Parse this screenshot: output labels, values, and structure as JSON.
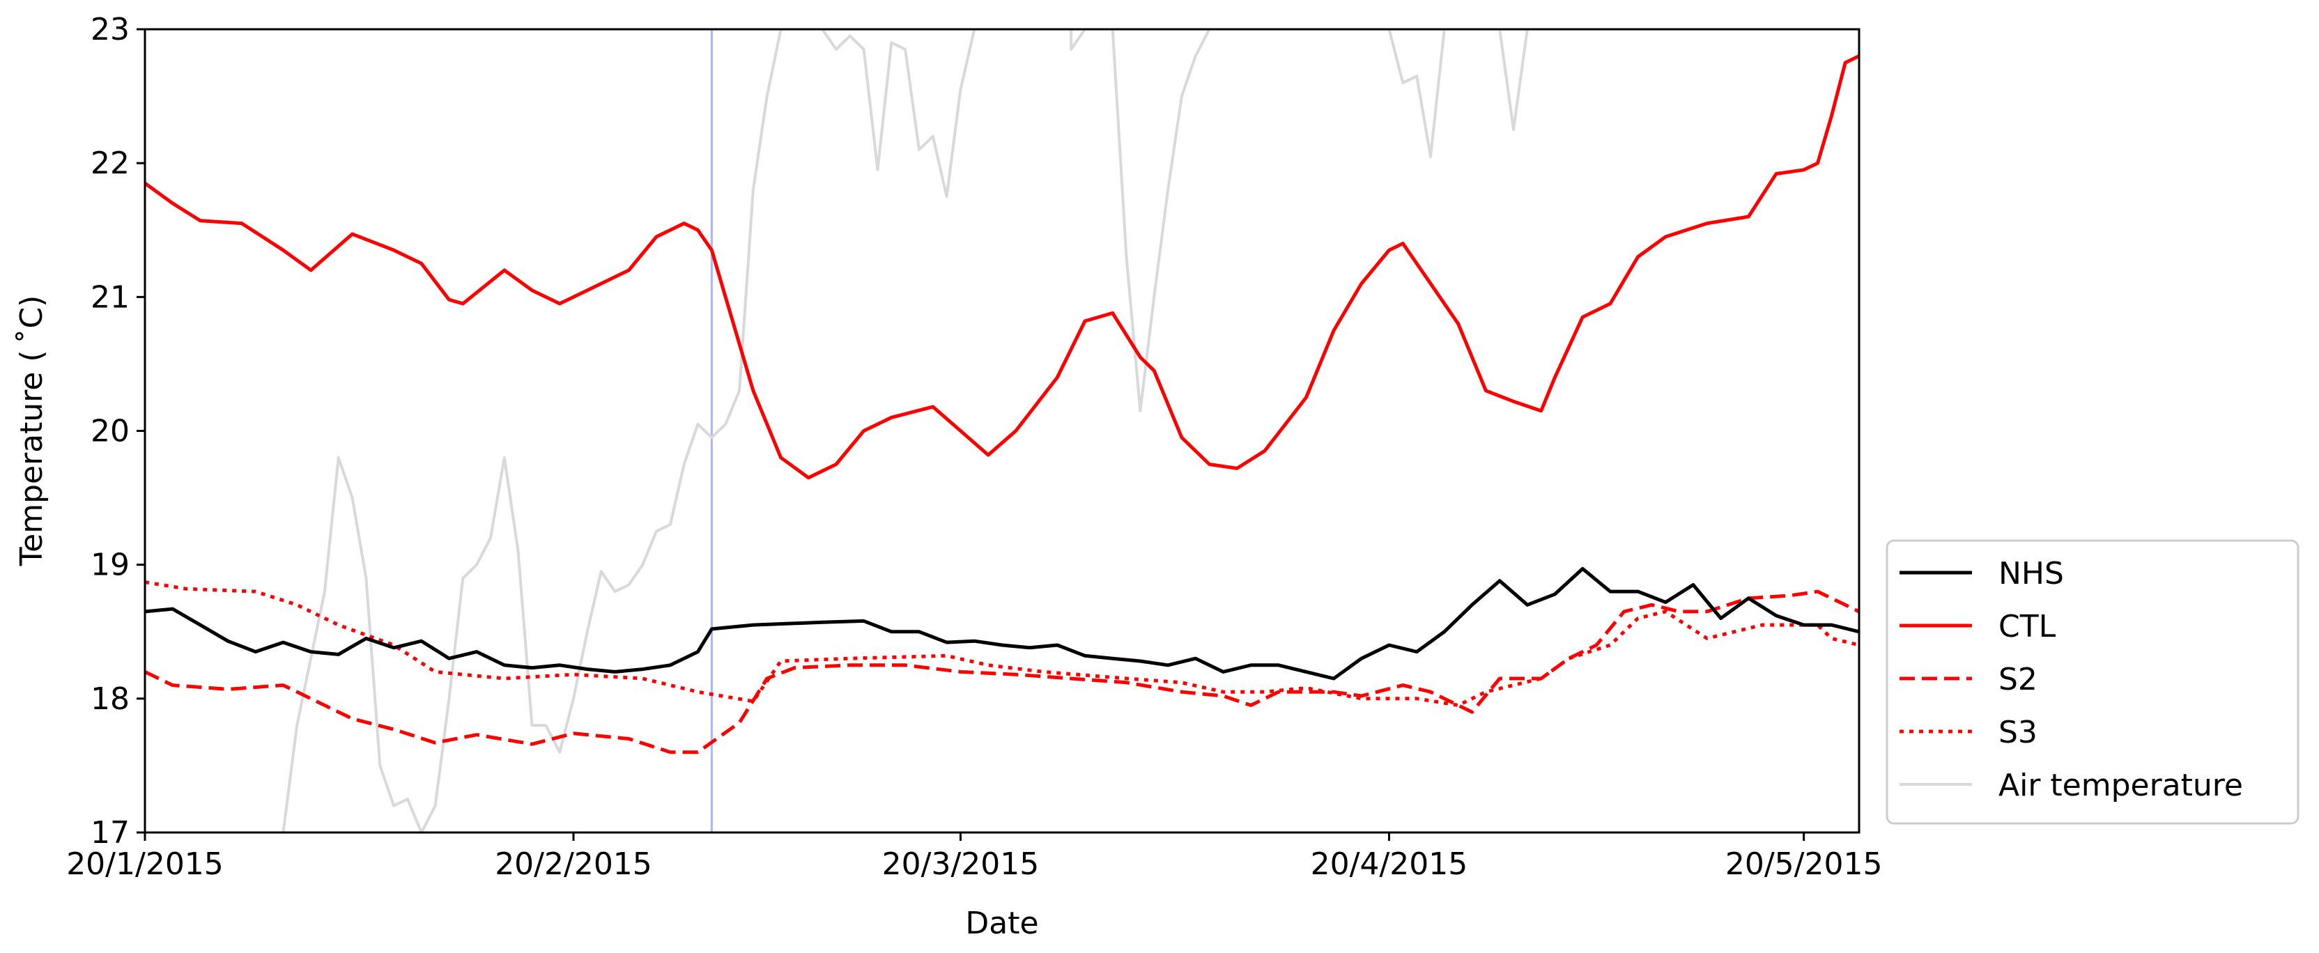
{
  "chart_data": {
    "type": "line",
    "title": "",
    "xlabel": "Date",
    "ylabel": "Temperature ( ˚C)",
    "ylim": [
      17,
      23
    ],
    "xlim": [
      "2015-01-20",
      "2015-05-24"
    ],
    "x_ticks": [
      {
        "date": "2015-01-20",
        "label": "20/1/2015"
      },
      {
        "date": "2015-02-20",
        "label": "20/2/2015"
      },
      {
        "date": "2015-03-20",
        "label": "20/3/2015"
      },
      {
        "date": "2015-04-20",
        "label": "20/4/2015"
      },
      {
        "date": "2015-05-20",
        "label": "20/5/2015"
      }
    ],
    "y_ticks": [
      17,
      18,
      19,
      20,
      21,
      22,
      23
    ],
    "grid": false,
    "legend_position": "right-bottom, outside plot",
    "vertical_marker": {
      "date": "2015-03-02",
      "color": "#aab4ff"
    },
    "series": [
      {
        "name": "NHS",
        "color": "#000000",
        "dash": "solid",
        "points": [
          [
            "2015-01-20",
            18.65
          ],
          [
            "2015-01-22",
            18.67
          ],
          [
            "2015-01-24",
            18.55
          ],
          [
            "2015-01-26",
            18.43
          ],
          [
            "2015-01-28",
            18.35
          ],
          [
            "2015-01-30",
            18.42
          ],
          [
            "2015-02-01",
            18.35
          ],
          [
            "2015-02-03",
            18.33
          ],
          [
            "2015-02-05",
            18.45
          ],
          [
            "2015-02-07",
            18.38
          ],
          [
            "2015-02-09",
            18.43
          ],
          [
            "2015-02-11",
            18.3
          ],
          [
            "2015-02-13",
            18.35
          ],
          [
            "2015-02-15",
            18.25
          ],
          [
            "2015-02-17",
            18.23
          ],
          [
            "2015-02-19",
            18.25
          ],
          [
            "2015-02-21",
            18.22
          ],
          [
            "2015-02-23",
            18.2
          ],
          [
            "2015-02-25",
            18.22
          ],
          [
            "2015-02-27",
            18.25
          ],
          [
            "2015-03-01",
            18.35
          ],
          [
            "2015-03-02",
            18.52
          ],
          [
            "2015-03-05",
            18.55
          ],
          [
            "2015-03-10",
            18.57
          ],
          [
            "2015-03-13",
            18.58
          ],
          [
            "2015-03-15",
            18.5
          ],
          [
            "2015-03-17",
            18.5
          ],
          [
            "2015-03-19",
            18.42
          ],
          [
            "2015-03-21",
            18.43
          ],
          [
            "2015-03-23",
            18.4
          ],
          [
            "2015-03-25",
            18.38
          ],
          [
            "2015-03-27",
            18.4
          ],
          [
            "2015-03-29",
            18.32
          ],
          [
            "2015-03-31",
            18.3
          ],
          [
            "2015-04-02",
            18.28
          ],
          [
            "2015-04-04",
            18.25
          ],
          [
            "2015-04-06",
            18.3
          ],
          [
            "2015-04-08",
            18.2
          ],
          [
            "2015-04-10",
            18.25
          ],
          [
            "2015-04-12",
            18.25
          ],
          [
            "2015-04-14",
            18.2
          ],
          [
            "2015-04-16",
            18.15
          ],
          [
            "2015-04-18",
            18.3
          ],
          [
            "2015-04-20",
            18.4
          ],
          [
            "2015-04-22",
            18.35
          ],
          [
            "2015-04-24",
            18.5
          ],
          [
            "2015-04-26",
            18.7
          ],
          [
            "2015-04-28",
            18.88
          ],
          [
            "2015-04-30",
            18.7
          ],
          [
            "2015-05-02",
            18.78
          ],
          [
            "2015-05-04",
            18.97
          ],
          [
            "2015-05-06",
            18.8
          ],
          [
            "2015-05-08",
            18.8
          ],
          [
            "2015-05-10",
            18.72
          ],
          [
            "2015-05-12",
            18.85
          ],
          [
            "2015-05-14",
            18.6
          ],
          [
            "2015-05-16",
            18.75
          ],
          [
            "2015-05-18",
            18.62
          ],
          [
            "2015-05-20",
            18.55
          ],
          [
            "2015-05-22",
            18.55
          ],
          [
            "2015-05-24",
            18.5
          ]
        ]
      },
      {
        "name": "CTL",
        "color": "#ff0000",
        "dash": "solid",
        "points": [
          [
            "2015-01-20",
            21.85
          ],
          [
            "2015-01-22",
            21.7
          ],
          [
            "2015-01-24",
            21.57
          ],
          [
            "2015-01-27",
            21.55
          ],
          [
            "2015-01-30",
            21.35
          ],
          [
            "2015-02-01",
            21.2
          ],
          [
            "2015-02-04",
            21.47
          ],
          [
            "2015-02-07",
            21.35
          ],
          [
            "2015-02-09",
            21.25
          ],
          [
            "2015-02-11",
            20.98
          ],
          [
            "2015-02-12",
            20.95
          ],
          [
            "2015-02-15",
            21.2
          ],
          [
            "2015-02-17",
            21.05
          ],
          [
            "2015-02-19",
            20.95
          ],
          [
            "2015-02-21",
            21.05
          ],
          [
            "2015-02-24",
            21.2
          ],
          [
            "2015-02-26",
            21.45
          ],
          [
            "2015-02-28",
            21.55
          ],
          [
            "2015-03-01",
            21.5
          ],
          [
            "2015-03-02",
            21.35
          ],
          [
            "2015-03-03",
            21.0
          ],
          [
            "2015-03-05",
            20.3
          ],
          [
            "2015-03-07",
            19.8
          ],
          [
            "2015-03-09",
            19.65
          ],
          [
            "2015-03-11",
            19.75
          ],
          [
            "2015-03-13",
            20.0
          ],
          [
            "2015-03-15",
            20.1
          ],
          [
            "2015-03-18",
            20.18
          ],
          [
            "2015-03-20",
            20.0
          ],
          [
            "2015-03-22",
            19.82
          ],
          [
            "2015-03-24",
            20.0
          ],
          [
            "2015-03-27",
            20.4
          ],
          [
            "2015-03-29",
            20.82
          ],
          [
            "2015-03-31",
            20.88
          ],
          [
            "2015-04-02",
            20.55
          ],
          [
            "2015-04-03",
            20.45
          ],
          [
            "2015-04-05",
            19.95
          ],
          [
            "2015-04-07",
            19.75
          ],
          [
            "2015-04-09",
            19.72
          ],
          [
            "2015-04-11",
            19.85
          ],
          [
            "2015-04-14",
            20.25
          ],
          [
            "2015-04-16",
            20.75
          ],
          [
            "2015-04-18",
            21.1
          ],
          [
            "2015-04-20",
            21.35
          ],
          [
            "2015-04-21",
            21.4
          ],
          [
            "2015-04-23",
            21.1
          ],
          [
            "2015-04-25",
            20.8
          ],
          [
            "2015-04-27",
            20.3
          ],
          [
            "2015-04-29",
            20.22
          ],
          [
            "2015-05-01",
            20.15
          ],
          [
            "2015-05-02",
            20.4
          ],
          [
            "2015-05-04",
            20.85
          ],
          [
            "2015-05-06",
            20.95
          ],
          [
            "2015-05-08",
            21.3
          ],
          [
            "2015-05-10",
            21.45
          ],
          [
            "2015-05-13",
            21.55
          ],
          [
            "2015-05-16",
            21.6
          ],
          [
            "2015-05-18",
            21.92
          ],
          [
            "2015-05-20",
            21.95
          ],
          [
            "2015-05-21",
            22.0
          ],
          [
            "2015-05-22",
            22.35
          ],
          [
            "2015-05-23",
            22.75
          ],
          [
            "2015-05-24",
            22.8
          ]
        ]
      },
      {
        "name": "S2",
        "color": "#ff0000",
        "dash": "dashed",
        "points": [
          [
            "2015-01-20",
            18.2
          ],
          [
            "2015-01-22",
            18.1
          ],
          [
            "2015-01-26",
            18.07
          ],
          [
            "2015-01-30",
            18.1
          ],
          [
            "2015-02-01",
            18.0
          ],
          [
            "2015-02-04",
            17.85
          ],
          [
            "2015-02-07",
            17.77
          ],
          [
            "2015-02-10",
            17.67
          ],
          [
            "2015-02-13",
            17.73
          ],
          [
            "2015-02-17",
            17.66
          ],
          [
            "2015-02-20",
            17.74
          ],
          [
            "2015-02-24",
            17.7
          ],
          [
            "2015-02-27",
            17.6
          ],
          [
            "2015-03-01",
            17.6
          ],
          [
            "2015-03-04",
            17.82
          ],
          [
            "2015-03-06",
            18.15
          ],
          [
            "2015-03-08",
            18.23
          ],
          [
            "2015-03-12",
            18.25
          ],
          [
            "2015-03-16",
            18.25
          ],
          [
            "2015-03-20",
            18.2
          ],
          [
            "2015-03-24",
            18.18
          ],
          [
            "2015-03-28",
            18.15
          ],
          [
            "2015-04-01",
            18.12
          ],
          [
            "2015-04-05",
            18.05
          ],
          [
            "2015-04-08",
            18.02
          ],
          [
            "2015-04-10",
            17.95
          ],
          [
            "2015-04-12",
            18.05
          ],
          [
            "2015-04-16",
            18.05
          ],
          [
            "2015-04-18",
            18.02
          ],
          [
            "2015-04-21",
            18.1
          ],
          [
            "2015-04-23",
            18.05
          ],
          [
            "2015-04-26",
            17.9
          ],
          [
            "2015-04-28",
            18.15
          ],
          [
            "2015-05-01",
            18.15
          ],
          [
            "2015-05-03",
            18.3
          ],
          [
            "2015-05-05",
            18.4
          ],
          [
            "2015-05-07",
            18.65
          ],
          [
            "2015-05-09",
            18.7
          ],
          [
            "2015-05-11",
            18.65
          ],
          [
            "2015-05-13",
            18.65
          ],
          [
            "2015-05-16",
            18.75
          ],
          [
            "2015-05-19",
            18.77
          ],
          [
            "2015-05-21",
            18.8
          ],
          [
            "2015-05-24",
            18.65
          ]
        ]
      },
      {
        "name": "S3",
        "color": "#ff0000",
        "dash": "dotted",
        "points": [
          [
            "2015-01-20",
            18.87
          ],
          [
            "2015-01-23",
            18.82
          ],
          [
            "2015-01-28",
            18.8
          ],
          [
            "2015-01-31",
            18.7
          ],
          [
            "2015-02-03",
            18.55
          ],
          [
            "2015-02-07",
            18.4
          ],
          [
            "2015-02-10",
            18.2
          ],
          [
            "2015-02-15",
            18.15
          ],
          [
            "2015-02-20",
            18.18
          ],
          [
            "2015-02-25",
            18.15
          ],
          [
            "2015-03-01",
            18.05
          ],
          [
            "2015-03-05",
            17.98
          ],
          [
            "2015-03-07",
            18.28
          ],
          [
            "2015-03-12",
            18.3
          ],
          [
            "2015-03-19",
            18.32
          ],
          [
            "2015-03-22",
            18.25
          ],
          [
            "2015-03-26",
            18.2
          ],
          [
            "2015-04-01",
            18.15
          ],
          [
            "2015-04-05",
            18.12
          ],
          [
            "2015-04-08",
            18.05
          ],
          [
            "2015-04-11",
            18.05
          ],
          [
            "2015-04-14",
            18.08
          ],
          [
            "2015-04-18",
            18.0
          ],
          [
            "2015-04-22",
            18.0
          ],
          [
            "2015-04-25",
            17.95
          ],
          [
            "2015-04-27",
            18.05
          ],
          [
            "2015-05-01",
            18.15
          ],
          [
            "2015-05-03",
            18.3
          ],
          [
            "2015-05-06",
            18.4
          ],
          [
            "2015-05-08",
            18.6
          ],
          [
            "2015-05-10",
            18.65
          ],
          [
            "2015-05-13",
            18.45
          ],
          [
            "2015-05-17",
            18.55
          ],
          [
            "2015-05-21",
            18.55
          ],
          [
            "2015-05-22",
            18.45
          ],
          [
            "2015-05-24",
            18.4
          ]
        ]
      },
      {
        "name": "Air temperature",
        "color": "#d9d9d9",
        "dash": "solid",
        "points": [
          [
            "2015-01-30",
            17.0
          ],
          [
            "2015-01-31",
            17.8
          ],
          [
            "2015-02-02",
            18.8
          ],
          [
            "2015-02-03",
            19.8
          ],
          [
            "2015-02-04",
            19.5
          ],
          [
            "2015-02-05",
            18.9
          ],
          [
            "2015-02-06",
            17.5
          ],
          [
            "2015-02-07",
            17.2
          ],
          [
            "2015-02-08",
            17.25
          ],
          [
            "2015-02-09",
            17.0
          ],
          [
            "2015-02-10",
            17.2
          ],
          [
            "2015-02-11",
            18.0
          ],
          [
            "2015-02-12",
            18.9
          ],
          [
            "2015-02-13",
            19.0
          ],
          [
            "2015-02-14",
            19.2
          ],
          [
            "2015-02-15",
            19.8
          ],
          [
            "2015-02-16",
            19.1
          ],
          [
            "2015-02-17",
            17.8
          ],
          [
            "2015-02-18",
            17.8
          ],
          [
            "2015-02-19",
            17.6
          ],
          [
            "2015-02-20",
            18.0
          ],
          [
            "2015-02-21",
            18.5
          ],
          [
            "2015-02-22",
            18.95
          ],
          [
            "2015-02-23",
            18.8
          ],
          [
            "2015-02-24",
            18.85
          ],
          [
            "2015-02-25",
            19.0
          ],
          [
            "2015-02-26",
            19.25
          ],
          [
            "2015-02-27",
            19.3
          ],
          [
            "2015-02-28",
            19.75
          ],
          [
            "2015-03-01",
            20.05
          ],
          [
            "2015-03-02",
            19.95
          ],
          [
            "2015-03-03",
            20.05
          ],
          [
            "2015-03-04",
            20.3
          ],
          [
            "2015-03-05",
            21.8
          ],
          [
            "2015-03-06",
            22.5
          ],
          [
            "2015-03-07",
            23.0
          ]
        ]
      }
    ],
    "air_temperature_offscale_segments": [
      [
        [
          "2015-03-10",
          23.0
        ],
        [
          "2015-03-11",
          22.85
        ],
        [
          "2015-03-12",
          22.95
        ],
        [
          "2015-03-13",
          22.85
        ],
        [
          "2015-03-14",
          21.95
        ],
        [
          "2015-03-15",
          22.9
        ],
        [
          "2015-03-16",
          22.85
        ],
        [
          "2015-03-17",
          22.1
        ],
        [
          "2015-03-18",
          22.2
        ],
        [
          "2015-03-19",
          21.75
        ],
        [
          "2015-03-20",
          22.55
        ],
        [
          "2015-03-21",
          23.0
        ]
      ],
      [
        [
          "2015-03-28",
          23.0
        ],
        [
          "2015-03-28",
          22.85
        ],
        [
          "2015-03-29",
          23.0
        ]
      ],
      [
        [
          "2015-03-31",
          23.0
        ],
        [
          "2015-04-01",
          21.3
        ],
        [
          "2015-04-02",
          20.15
        ],
        [
          "2015-04-03",
          21.0
        ],
        [
          "2015-04-04",
          21.8
        ],
        [
          "2015-04-05",
          22.5
        ],
        [
          "2015-04-06",
          22.8
        ],
        [
          "2015-04-07",
          23.0
        ]
      ],
      [
        [
          "2015-04-20",
          23.0
        ],
        [
          "2015-04-21",
          22.6
        ],
        [
          "2015-04-22",
          22.65
        ],
        [
          "2015-04-23",
          22.05
        ],
        [
          "2015-04-24",
          23.0
        ]
      ],
      [
        [
          "2015-04-28",
          23.0
        ],
        [
          "2015-04-29",
          22.25
        ],
        [
          "2015-04-30",
          23.0
        ]
      ]
    ]
  }
}
